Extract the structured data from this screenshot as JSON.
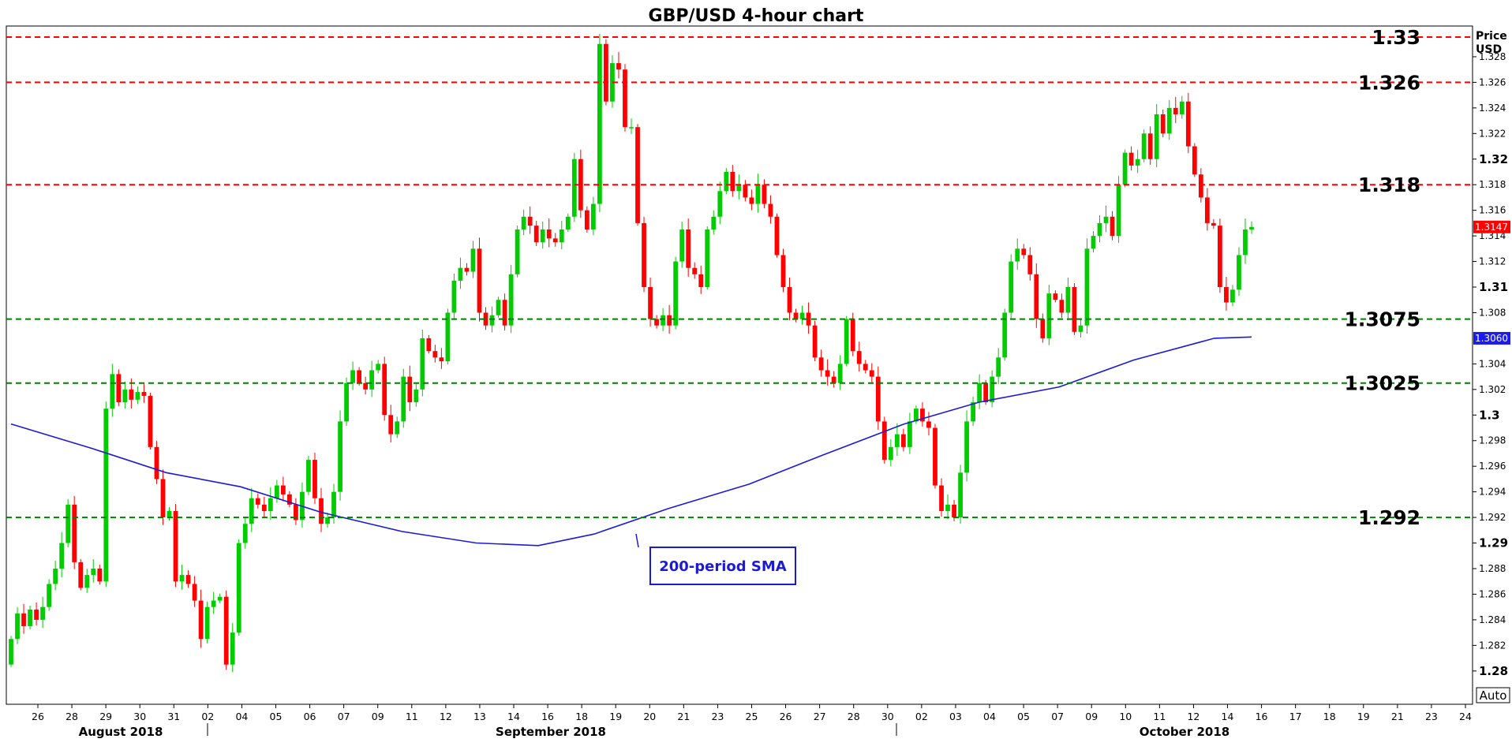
{
  "chart_data": {
    "type": "candlestick",
    "title": "GBP/USD 4-hour chart",
    "ylabel": [
      "Price",
      "USD"
    ],
    "ylim": [
      1.2774,
      1.3304
    ],
    "y_ticks": [
      {
        "value": 1.328,
        "label": "1.328"
      },
      {
        "value": 1.326,
        "label": "1.326"
      },
      {
        "value": 1.324,
        "label": "1.324"
      },
      {
        "value": 1.322,
        "label": "1.322"
      },
      {
        "value": 1.32,
        "label": "1.32",
        "major": true
      },
      {
        "value": 1.318,
        "label": "1.318"
      },
      {
        "value": 1.316,
        "label": "1.316"
      },
      {
        "value": 1.314,
        "label": "1.314"
      },
      {
        "value": 1.312,
        "label": "1.312"
      },
      {
        "value": 1.31,
        "label": "1.31",
        "major": true
      },
      {
        "value": 1.308,
        "label": "1.308"
      },
      {
        "value": 1.304,
        "label": "1.304"
      },
      {
        "value": 1.302,
        "label": "1.302"
      },
      {
        "value": 1.3,
        "label": "1.3",
        "major": true
      },
      {
        "value": 1.298,
        "label": "1.298"
      },
      {
        "value": 1.296,
        "label": "1.296"
      },
      {
        "value": 1.294,
        "label": "1.294"
      },
      {
        "value": 1.292,
        "label": "1.292"
      },
      {
        "value": 1.29,
        "label": "1.29",
        "major": true
      },
      {
        "value": 1.288,
        "label": "1.288"
      },
      {
        "value": 1.286,
        "label": "1.286"
      },
      {
        "value": 1.284,
        "label": "1.284"
      },
      {
        "value": 1.282,
        "label": "1.282"
      },
      {
        "value": 1.28,
        "label": "1.28",
        "major": true
      }
    ],
    "x_ticks": [
      "26",
      "28",
      "29",
      "30",
      "31",
      "02",
      "04",
      "05",
      "06",
      "07",
      "09",
      "11",
      "12",
      "13",
      "14",
      "16",
      "18",
      "19",
      "20",
      "21",
      "23",
      "25",
      "26",
      "27",
      "28",
      "30",
      "02",
      "03",
      "04",
      "05",
      "07",
      "09",
      "10",
      "11",
      "12",
      "14",
      "16",
      "17",
      "18",
      "19",
      "21",
      "23",
      "24"
    ],
    "x_months": [
      "August 2018",
      "September 2018",
      "October 2018"
    ],
    "levels": [
      {
        "value": 1.33,
        "label": "1.33",
        "kind": "resistance",
        "color": "#ff0000"
      },
      {
        "value": 1.326,
        "label": "1.326",
        "kind": "resistance",
        "color": "#ff0000"
      },
      {
        "value": 1.318,
        "label": "1.318",
        "kind": "resistance",
        "color": "#ff0000"
      },
      {
        "value": 1.3075,
        "label": "1.3075",
        "kind": "support",
        "color": "#008000"
      },
      {
        "value": 1.3025,
        "label": "1.3025",
        "kind": "support",
        "color": "#008000"
      },
      {
        "value": 1.292,
        "label": "1.292",
        "kind": "support",
        "color": "#008000"
      }
    ],
    "price_tags": [
      {
        "value": 1.3147,
        "label": "1.3147",
        "color": "#ff0000"
      },
      {
        "value": 1.306,
        "label": "1.3060",
        "color": "#1b1bf0"
      }
    ],
    "sma": {
      "label": "200-period SMA",
      "color": "#1b1bd6",
      "points": [
        [
          0,
          1.2993
        ],
        [
          13,
          1.2974
        ],
        [
          25,
          1.2955
        ],
        [
          37,
          1.2944
        ],
        [
          50,
          1.2924
        ],
        [
          63,
          1.2909
        ],
        [
          75,
          1.29
        ],
        [
          85,
          1.2898
        ],
        [
          94,
          1.2907
        ],
        [
          106,
          1.2927
        ],
        [
          119,
          1.2946
        ],
        [
          131,
          1.2969
        ],
        [
          144,
          1.2993
        ],
        [
          156,
          1.301
        ],
        [
          169,
          1.3022
        ],
        [
          181,
          1.3043
        ],
        [
          194,
          1.306
        ],
        [
          200,
          1.3061
        ]
      ]
    },
    "candles": [
      [
        1.2805,
        1.2825
      ],
      [
        1.2825,
        1.2845
      ],
      [
        1.2845,
        1.2835
      ],
      [
        1.2835,
        1.2848
      ],
      [
        1.2848,
        1.284
      ],
      [
        1.284,
        1.285
      ],
      [
        1.285,
        1.2868
      ],
      [
        1.2868,
        1.288
      ],
      [
        1.288,
        1.29
      ],
      [
        1.29,
        1.293
      ],
      [
        1.293,
        1.2885
      ],
      [
        1.2885,
        1.2865
      ],
      [
        1.2865,
        1.2875
      ],
      [
        1.2875,
        1.288
      ],
      [
        1.288,
        1.287
      ],
      [
        1.287,
        1.3005
      ],
      [
        1.3005,
        1.3032
      ],
      [
        1.3032,
        1.301
      ],
      [
        1.301,
        1.302
      ],
      [
        1.302,
        1.3012
      ],
      [
        1.3012,
        1.3018
      ],
      [
        1.3018,
        1.3015
      ],
      [
        1.3015,
        1.2975
      ],
      [
        1.2975,
        1.295
      ],
      [
        1.295,
        1.292
      ],
      [
        1.292,
        1.2925
      ],
      [
        1.2925,
        1.287
      ],
      [
        1.287,
        1.2875
      ],
      [
        1.2875,
        1.2868
      ],
      [
        1.2868,
        1.2855
      ],
      [
        1.2855,
        1.2825
      ],
      [
        1.2825,
        1.285
      ],
      [
        1.285,
        1.2855
      ],
      [
        1.2855,
        1.2858
      ],
      [
        1.2858,
        1.2805
      ],
      [
        1.2805,
        1.283
      ],
      [
        1.283,
        1.29
      ],
      [
        1.29,
        1.2915
      ],
      [
        1.2915,
        1.2935
      ],
      [
        1.2935,
        1.293
      ],
      [
        1.293,
        1.2925
      ],
      [
        1.2925,
        1.2935
      ],
      [
        1.2935,
        1.2945
      ],
      [
        1.2945,
        1.2938
      ],
      [
        1.2938,
        1.293
      ],
      [
        1.293,
        1.2918
      ],
      [
        1.2918,
        1.294
      ],
      [
        1.294,
        1.2965
      ],
      [
        1.2965,
        1.2935
      ],
      [
        1.2935,
        1.2915
      ],
      [
        1.2915,
        1.292
      ],
      [
        1.292,
        1.294
      ],
      [
        1.294,
        1.2995
      ],
      [
        1.2995,
        1.3025
      ],
      [
        1.3025,
        1.3035
      ],
      [
        1.3035,
        1.3025
      ],
      [
        1.3025,
        1.302
      ],
      [
        1.302,
        1.3035
      ],
      [
        1.3035,
        1.304
      ],
      [
        1.304,
        1.3
      ],
      [
        1.3,
        1.2985
      ],
      [
        1.2985,
        1.2995
      ],
      [
        1.2995,
        1.303
      ],
      [
        1.303,
        1.301
      ],
      [
        1.301,
        1.302
      ],
      [
        1.302,
        1.306
      ],
      [
        1.306,
        1.305
      ],
      [
        1.305,
        1.3045
      ],
      [
        1.3045,
        1.3042
      ],
      [
        1.3042,
        1.308
      ],
      [
        1.308,
        1.3105
      ],
      [
        1.3105,
        1.3115
      ],
      [
        1.3115,
        1.3112
      ],
      [
        1.3112,
        1.313
      ],
      [
        1.313,
        1.308
      ],
      [
        1.308,
        1.307
      ],
      [
        1.307,
        1.3078
      ],
      [
        1.3078,
        1.309
      ],
      [
        1.309,
        1.307
      ],
      [
        1.307,
        1.311
      ],
      [
        1.311,
        1.3145
      ],
      [
        1.3145,
        1.3155
      ],
      [
        1.3155,
        1.3148
      ],
      [
        1.3148,
        1.3135
      ],
      [
        1.3135,
        1.3145
      ],
      [
        1.3145,
        1.3138
      ],
      [
        1.3138,
        1.3135
      ],
      [
        1.3135,
        1.3145
      ],
      [
        1.3145,
        1.3155
      ],
      [
        1.3155,
        1.32
      ],
      [
        1.32,
        1.316
      ],
      [
        1.316,
        1.3145
      ],
      [
        1.3145,
        1.3165
      ],
      [
        1.3165,
        1.329
      ],
      [
        1.329,
        1.3245
      ],
      [
        1.3245,
        1.3275
      ],
      [
        1.3275,
        1.327
      ],
      [
        1.327,
        1.3225
      ],
      [
        1.3225,
        1.3225
      ],
      [
        1.3225,
        1.315
      ],
      [
        1.315,
        1.31
      ],
      [
        1.31,
        1.3075
      ],
      [
        1.3075,
        1.307
      ],
      [
        1.307,
        1.3078
      ],
      [
        1.3078,
        1.307
      ],
      [
        1.307,
        1.312
      ],
      [
        1.312,
        1.3145
      ],
      [
        1.3145,
        1.3115
      ],
      [
        1.3115,
        1.311
      ],
      [
        1.311,
        1.31
      ],
      [
        1.31,
        1.3145
      ],
      [
        1.3145,
        1.3155
      ],
      [
        1.3155,
        1.3175
      ],
      [
        1.3175,
        1.319
      ],
      [
        1.319,
        1.3175
      ],
      [
        1.3175,
        1.318
      ],
      [
        1.318,
        1.317
      ],
      [
        1.317,
        1.3165
      ],
      [
        1.3165,
        1.318
      ],
      [
        1.318,
        1.3165
      ],
      [
        1.3165,
        1.3155
      ],
      [
        1.3155,
        1.3125
      ],
      [
        1.3125,
        1.31
      ],
      [
        1.31,
        1.308
      ],
      [
        1.308,
        1.3075
      ],
      [
        1.3075,
        1.308
      ],
      [
        1.308,
        1.307
      ],
      [
        1.307,
        1.3045
      ],
      [
        1.3045,
        1.3035
      ],
      [
        1.3035,
        1.303
      ],
      [
        1.303,
        1.3025
      ],
      [
        1.3025,
        1.304
      ],
      [
        1.304,
        1.3075
      ],
      [
        1.3075,
        1.305
      ],
      [
        1.305,
        1.304
      ],
      [
        1.304,
        1.3035
      ],
      [
        1.3035,
        1.303
      ],
      [
        1.303,
        1.2995
      ],
      [
        1.2995,
        1.2965
      ],
      [
        1.2965,
        1.2975
      ],
      [
        1.2975,
        1.2985
      ],
      [
        1.2985,
        1.2975
      ],
      [
        1.2975,
        1.2995
      ],
      [
        1.2995,
        1.3005
      ],
      [
        1.3005,
        1.2995
      ],
      [
        1.2995,
        1.299
      ],
      [
        1.299,
        1.2945
      ],
      [
        1.2945,
        1.2925
      ],
      [
        1.2925,
        1.293
      ],
      [
        1.293,
        1.292
      ],
      [
        1.292,
        1.2955
      ],
      [
        1.2955,
        1.2995
      ],
      [
        1.2995,
        1.301
      ],
      [
        1.301,
        1.3025
      ],
      [
        1.3025,
        1.301
      ],
      [
        1.301,
        1.303
      ],
      [
        1.303,
        1.3045
      ],
      [
        1.3045,
        1.308
      ],
      [
        1.308,
        1.312
      ],
      [
        1.312,
        1.313
      ],
      [
        1.313,
        1.3125
      ],
      [
        1.3125,
        1.311
      ],
      [
        1.311,
        1.3075
      ],
      [
        1.3075,
        1.306
      ],
      [
        1.306,
        1.3095
      ],
      [
        1.3095,
        1.309
      ],
      [
        1.309,
        1.308
      ],
      [
        1.308,
        1.31
      ],
      [
        1.31,
        1.3065
      ],
      [
        1.3065,
        1.307
      ],
      [
        1.307,
        1.313
      ],
      [
        1.313,
        1.314
      ],
      [
        1.314,
        1.315
      ],
      [
        1.315,
        1.3155
      ],
      [
        1.3155,
        1.314
      ],
      [
        1.314,
        1.318
      ],
      [
        1.318,
        1.3205
      ],
      [
        1.3205,
        1.3195
      ],
      [
        1.3195,
        1.32
      ],
      [
        1.32,
        1.322
      ],
      [
        1.322,
        1.32
      ],
      [
        1.32,
        1.3235
      ],
      [
        1.3235,
        1.322
      ],
      [
        1.322,
        1.324
      ],
      [
        1.324,
        1.3235
      ],
      [
        1.3235,
        1.3245
      ],
      [
        1.3245,
        1.321
      ],
      [
        1.321,
        1.3188
      ],
      [
        1.3188,
        1.317
      ],
      [
        1.317,
        1.315
      ],
      [
        1.315,
        1.3148
      ],
      [
        1.3148,
        1.31
      ],
      [
        1.31,
        1.3088
      ],
      [
        1.3088,
        1.3098
      ],
      [
        1.3098,
        1.3125
      ],
      [
        1.3125,
        1.3145
      ],
      [
        1.3145,
        1.3147
      ]
    ]
  },
  "sma_callout": {
    "text": "200-period SMA"
  },
  "auto_button": {
    "label": "Auto"
  },
  "colors": {
    "up": "#00cc00",
    "down": "#ff0000",
    "frame": "#000000",
    "grid": "#000000"
  }
}
